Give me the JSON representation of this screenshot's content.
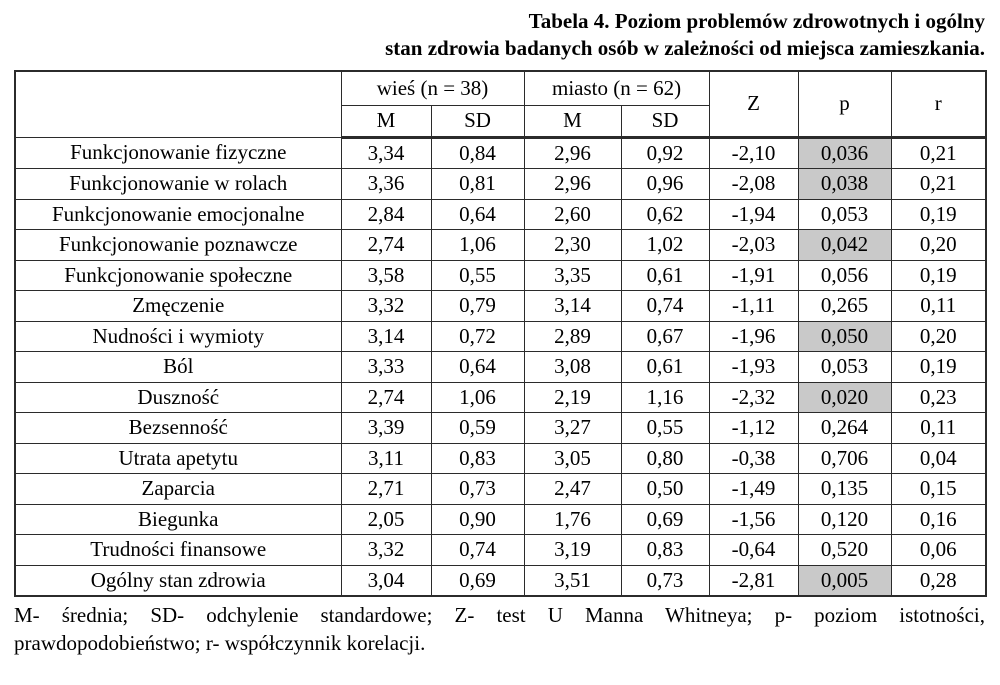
{
  "title": {
    "line1": "Tabela 4. Poziom problemów zdrowotnych i ogólny",
    "line2": "stan zdrowia badanych osób w zależności od miejsca zamieszkania."
  },
  "colors": {
    "significant_shade": "#c9c9c9",
    "border": "#2b2b2b",
    "text": "#000000",
    "background": "#ffffff"
  },
  "table": {
    "group_headers": {
      "wies": "wieś (n = 38)",
      "miasto": "miasto (n = 62)"
    },
    "sub_headers": {
      "wies_m": "M",
      "wies_sd": "SD",
      "miasto_m": "M",
      "miasto_sd": "SD"
    },
    "stat_headers": {
      "z": "Z",
      "p": "p",
      "r": "r"
    },
    "rows": [
      {
        "label": "Funkcjonowanie fizyczne",
        "wies_m": "3,34",
        "wies_sd": "0,84",
        "miasto_m": "2,96",
        "miasto_sd": "0,92",
        "z": "-2,10",
        "p": "0,036",
        "r": "0,21",
        "p_shaded": true
      },
      {
        "label": "Funkcjonowanie w rolach",
        "wies_m": "3,36",
        "wies_sd": "0,81",
        "miasto_m": "2,96",
        "miasto_sd": "0,96",
        "z": "-2,08",
        "p": "0,038",
        "r": "0,21",
        "p_shaded": true
      },
      {
        "label": "Funkcjonowanie emocjonalne",
        "wies_m": "2,84",
        "wies_sd": "0,64",
        "miasto_m": "2,60",
        "miasto_sd": "0,62",
        "z": "-1,94",
        "p": "0,053",
        "r": "0,19",
        "p_shaded": false
      },
      {
        "label": "Funkcjonowanie poznawcze",
        "wies_m": "2,74",
        "wies_sd": "1,06",
        "miasto_m": "2,30",
        "miasto_sd": "1,02",
        "z": "-2,03",
        "p": "0,042",
        "r": "0,20",
        "p_shaded": true
      },
      {
        "label": "Funkcjonowanie społeczne",
        "wies_m": "3,58",
        "wies_sd": "0,55",
        "miasto_m": "3,35",
        "miasto_sd": "0,61",
        "z": "-1,91",
        "p": "0,056",
        "r": "0,19",
        "p_shaded": false
      },
      {
        "label": "Zmęczenie",
        "wies_m": "3,32",
        "wies_sd": "0,79",
        "miasto_m": "3,14",
        "miasto_sd": "0,74",
        "z": "-1,11",
        "p": "0,265",
        "r": "0,11",
        "p_shaded": false
      },
      {
        "label": "Nudności i wymioty",
        "wies_m": "3,14",
        "wies_sd": "0,72",
        "miasto_m": "2,89",
        "miasto_sd": "0,67",
        "z": "-1,96",
        "p": "0,050",
        "r": "0,20",
        "p_shaded": true
      },
      {
        "label": "Ból",
        "wies_m": "3,33",
        "wies_sd": "0,64",
        "miasto_m": "3,08",
        "miasto_sd": "0,61",
        "z": "-1,93",
        "p": "0,053",
        "r": "0,19",
        "p_shaded": false
      },
      {
        "label": "Duszność",
        "wies_m": "2,74",
        "wies_sd": "1,06",
        "miasto_m": "2,19",
        "miasto_sd": "1,16",
        "z": "-2,32",
        "p": "0,020",
        "r": "0,23",
        "p_shaded": true
      },
      {
        "label": "Bezsenność",
        "wies_m": "3,39",
        "wies_sd": "0,59",
        "miasto_m": "3,27",
        "miasto_sd": "0,55",
        "z": "-1,12",
        "p": "0,264",
        "r": "0,11",
        "p_shaded": false
      },
      {
        "label": "Utrata apetytu",
        "wies_m": "3,11",
        "wies_sd": "0,83",
        "miasto_m": "3,05",
        "miasto_sd": "0,80",
        "z": "-0,38",
        "p": "0,706",
        "r": "0,04",
        "p_shaded": false
      },
      {
        "label": "Zaparcia",
        "wies_m": "2,71",
        "wies_sd": "0,73",
        "miasto_m": "2,47",
        "miasto_sd": "0,50",
        "z": "-1,49",
        "p": "0,135",
        "r": "0,15",
        "p_shaded": false
      },
      {
        "label": "Biegunka",
        "wies_m": "2,05",
        "wies_sd": "0,90",
        "miasto_m": "1,76",
        "miasto_sd": "0,69",
        "z": "-1,56",
        "p": "0,120",
        "r": "0,16",
        "p_shaded": false
      },
      {
        "label": "Trudności finansowe",
        "wies_m": "3,32",
        "wies_sd": "0,74",
        "miasto_m": "3,19",
        "miasto_sd": "0,83",
        "z": "-0,64",
        "p": "0,520",
        "r": "0,06",
        "p_shaded": false
      },
      {
        "label": "Ogólny stan zdrowia",
        "wies_m": "3,04",
        "wies_sd": "0,69",
        "miasto_m": "3,51",
        "miasto_sd": "0,73",
        "z": "-2,81",
        "p": "0,005",
        "r": "0,28",
        "p_shaded": true
      }
    ]
  },
  "footnote": {
    "line1": "M- średnia; SD- odchylenie standardowe; Z- test U Manna Whitneya; p- poziom istotności,",
    "line2": "prawdopodobieństwo; r- współczynnik korelacji."
  }
}
